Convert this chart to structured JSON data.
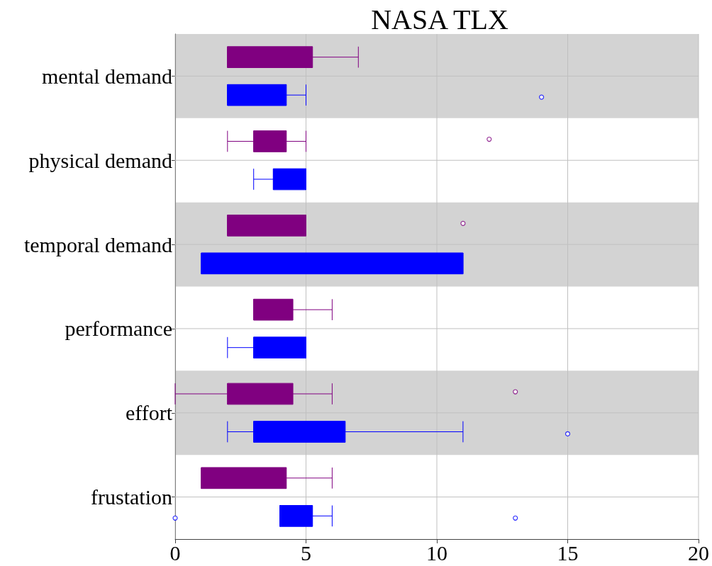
{
  "chart_data": {
    "type": "box",
    "title": "NASA TLX",
    "orientation": "horizontal",
    "categories": [
      "mental demand",
      "physical demand",
      "temporal demand",
      "performance",
      "effort",
      "frustation"
    ],
    "series": [
      {
        "color": "#800080",
        "boxes": [
          {
            "low": 2,
            "q1": 2,
            "median": 2,
            "q3": 5.25,
            "high": 7
          },
          {
            "low": 2,
            "q1": 3,
            "median": 3,
            "q3": 4.25,
            "high": 5,
            "outliers": [
              12
            ]
          },
          {
            "low": 2,
            "q1": 2,
            "median": 2,
            "q3": 5,
            "high": 5,
            "outliers": [
              11
            ]
          },
          {
            "low": 3,
            "q1": 3,
            "median": 3,
            "q3": 4.5,
            "high": 6
          },
          {
            "low": 0,
            "q1": 2,
            "median": 2,
            "q3": 4.5,
            "high": 6,
            "outliers": [
              13
            ]
          },
          {
            "low": 1,
            "q1": 1,
            "median": 1,
            "q3": 4.25,
            "high": 6
          }
        ]
      },
      {
        "color": "#0000ff",
        "boxes": [
          {
            "low": 2,
            "q1": 2,
            "median": 2,
            "q3": 4.25,
            "high": 5,
            "outliers": [
              14
            ]
          },
          {
            "low": 3,
            "q1": 3.75,
            "median": 3.75,
            "q3": 5,
            "high": 5
          },
          {
            "low": 1,
            "q1": 1,
            "median": 1,
            "q3": 11,
            "high": 11
          },
          {
            "low": 2,
            "q1": 3,
            "median": 3,
            "q3": 5,
            "high": 5
          },
          {
            "low": 2,
            "q1": 3,
            "median": 3,
            "q3": 6.5,
            "high": 11,
            "outliers": [
              15
            ]
          },
          {
            "low": 4,
            "q1": 4,
            "median": 4,
            "q3": 5.25,
            "high": 6,
            "outliers": [
              0,
              13
            ]
          }
        ]
      }
    ],
    "bands": [
      {
        "axis": "y",
        "from": "mental demand",
        "to": "mental demand",
        "color": "#d3d3d3"
      },
      {
        "axis": "y",
        "from": "temporal demand",
        "to": "temporal demand",
        "color": "#d3d3d3"
      },
      {
        "axis": "y",
        "from": "effort",
        "to": "effort",
        "color": "#d3d3d3"
      }
    ],
    "xlim": [
      0,
      20
    ],
    "xticks": [
      0,
      5,
      10,
      15,
      20
    ],
    "grid": true
  }
}
